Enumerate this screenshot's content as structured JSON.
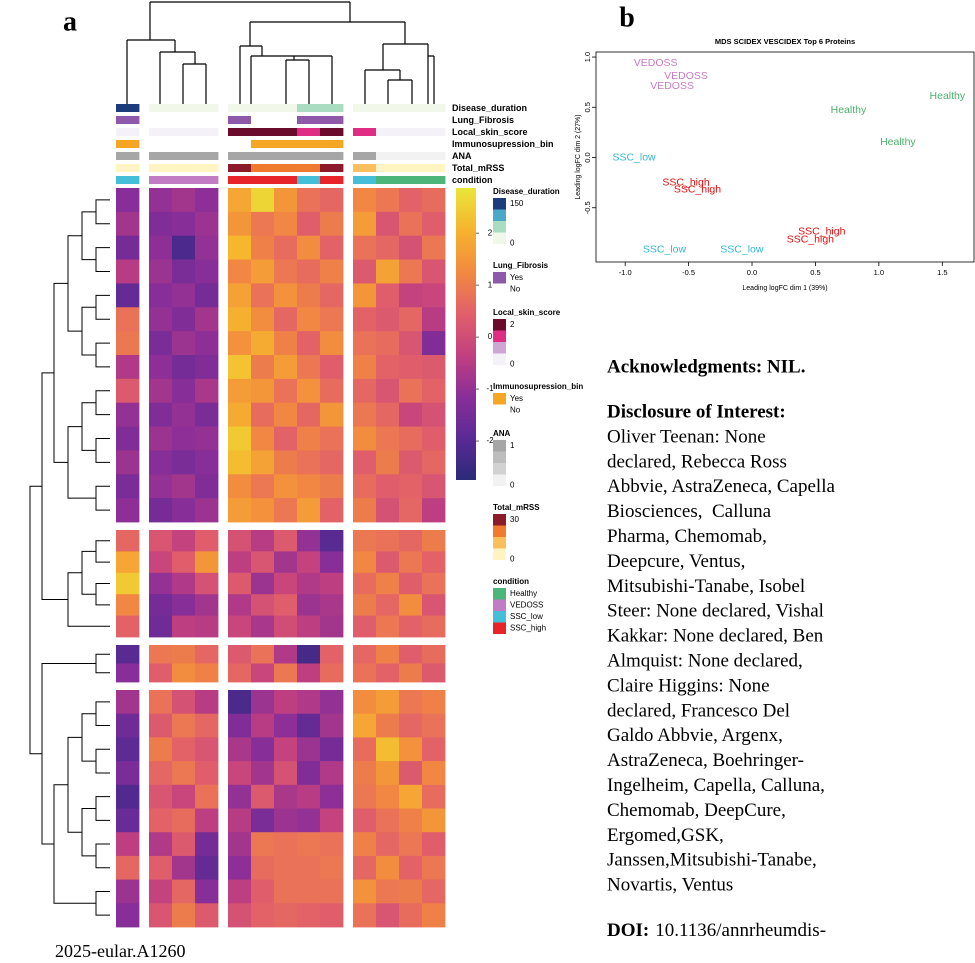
{
  "panel_a": "a",
  "panel_b": "b",
  "chart_data": [
    {
      "type": "heatmap",
      "column_groups": [
        1,
        3,
        5,
        4
      ],
      "row_groups": [
        14,
        5,
        2,
        10
      ],
      "rows": [
        [
          -1.2,
          -1.0,
          -0.8,
          -1.1,
          1.8,
          2.6,
          1.5,
          0.8,
          0.6,
          1.2,
          0.9,
          0.5,
          0.7
        ],
        [
          -0.8,
          -1.3,
          -1.2,
          -0.9,
          1.5,
          0.9,
          1.2,
          0.4,
          1.0,
          1.6,
          0.2,
          0.8,
          0.4
        ],
        [
          -1.5,
          -1.1,
          -2.2,
          -1.0,
          2.1,
          1.1,
          0.7,
          1.3,
          0.5,
          0.8,
          0.6,
          0.1,
          0.9
        ],
        [
          -0.5,
          -0.9,
          -1.4,
          -1.2,
          1.2,
          1.6,
          0.9,
          0.7,
          1.1,
          0.3,
          1.7,
          0.9,
          0.2
        ],
        [
          -1.8,
          -1.2,
          -1.0,
          -1.5,
          1.7,
          0.8,
          1.4,
          1.0,
          0.6,
          1.5,
          0.4,
          -0.3,
          -0.2
        ],
        [
          0.8,
          -1.0,
          -1.3,
          -0.8,
          2.0,
          1.3,
          0.6,
          1.2,
          0.9,
          0.5,
          0.3,
          0.6,
          -0.5
        ],
        [
          0.9,
          -1.4,
          -0.9,
          -1.1,
          1.4,
          1.9,
          1.1,
          0.5,
          1.3,
          0.8,
          0.7,
          0.2,
          -1.3
        ],
        [
          -0.6,
          -1.1,
          -1.5,
          -1.3,
          2.3,
          1.0,
          1.6,
          0.9,
          0.4,
          1.1,
          0.5,
          0.4,
          0.3
        ],
        [
          0.3,
          -0.8,
          -1.2,
          -0.7,
          1.6,
          1.5,
          0.8,
          1.4,
          0.7,
          0.6,
          0.2,
          0.8,
          0.5
        ],
        [
          -1.0,
          -1.3,
          -1.0,
          -1.4,
          1.9,
          0.7,
          1.2,
          0.6,
          1.5,
          0.9,
          0.6,
          -0.2,
          0.1
        ],
        [
          -1.3,
          -0.9,
          -1.1,
          -1.0,
          2.4,
          1.2,
          0.5,
          1.1,
          0.8,
          1.3,
          0.9,
          0.7,
          0.4
        ],
        [
          -0.9,
          -1.2,
          -1.4,
          -1.2,
          2.2,
          1.7,
          1.0,
          0.8,
          0.6,
          0.4,
          1.0,
          0.3,
          0.6
        ],
        [
          -1.4,
          -1.0,
          -0.8,
          -1.3,
          1.3,
          0.9,
          1.4,
          1.2,
          1.0,
          0.7,
          0.4,
          0.5,
          0.2
        ],
        [
          -1.1,
          -1.5,
          -1.2,
          -0.9,
          1.6,
          1.4,
          0.9,
          1.6,
          0.5,
          1.0,
          0.1,
          0.6,
          -0.4
        ],
        [
          0.6,
          0.2,
          -0.3,
          0.4,
          0.1,
          -0.5,
          0.3,
          -1.0,
          -2.0,
          0.9,
          0.8,
          0.6,
          1.0
        ],
        [
          1.8,
          -0.2,
          0.4,
          1.5,
          -0.4,
          0.2,
          -0.8,
          -0.3,
          -1.2,
          1.2,
          0.3,
          0.9,
          0.5
        ],
        [
          2.4,
          -1.0,
          -0.6,
          0.1,
          0.3,
          -0.9,
          -0.2,
          -0.6,
          -0.4,
          0.7,
          1.1,
          0.4,
          0.8
        ],
        [
          1.2,
          -1.5,
          -1.2,
          -0.8,
          -0.6,
          0.1,
          0.4,
          -0.9,
          -0.7,
          1.0,
          0.6,
          1.3,
          0.2
        ],
        [
          0.5,
          -1.6,
          -0.4,
          -0.5,
          -0.2,
          -0.7,
          0.0,
          -0.4,
          -0.8,
          0.4,
          0.9,
          0.5,
          0.7
        ],
        [
          -2.0,
          0.9,
          1.0,
          0.6,
          0.3,
          0.8,
          -0.6,
          -2.3,
          0.5,
          0.6,
          1.1,
          0.4,
          0.7
        ],
        [
          -1.2,
          0.4,
          1.3,
          1.1,
          0.6,
          -0.2,
          0.9,
          -0.4,
          0.7,
          0.8,
          0.5,
          1.0,
          0.3
        ],
        [
          -0.8,
          0.8,
          0.1,
          -0.5,
          -2.2,
          -0.9,
          -0.4,
          -0.6,
          -1.0,
          1.3,
          1.6,
          0.9,
          1.1
        ],
        [
          -1.6,
          0.3,
          0.9,
          0.6,
          -1.3,
          -0.5,
          -1.1,
          -1.8,
          -0.8,
          1.8,
          1.0,
          0.6,
          0.8
        ],
        [
          -1.9,
          1.0,
          0.5,
          0.2,
          -0.7,
          -1.2,
          -0.3,
          -0.9,
          -1.5,
          0.7,
          2.2,
          1.4,
          0.5
        ],
        [
          -1.4,
          0.6,
          0.9,
          0.4,
          -0.2,
          -0.8,
          0.1,
          -1.3,
          -0.6,
          1.0,
          1.5,
          0.3,
          1.2
        ],
        [
          -2.1,
          0.2,
          -0.2,
          0.8,
          -1.0,
          0.3,
          -0.7,
          -0.5,
          -1.1,
          0.9,
          1.2,
          1.8,
          0.7
        ],
        [
          -1.7,
          0.5,
          0.7,
          -0.4,
          -0.5,
          -1.4,
          -0.9,
          -1.0,
          -0.3,
          0.4,
          0.8,
          1.1,
          1.5
        ],
        [
          -0.4,
          -0.6,
          0.3,
          -1.5,
          -0.8,
          0.9,
          0.8,
          0.9,
          0.8,
          1.1,
          0.6,
          0.9,
          0.4
        ],
        [
          0.6,
          0.4,
          -0.8,
          -1.8,
          -1.1,
          0.7,
          0.8,
          0.8,
          0.9,
          0.6,
          1.3,
          0.5,
          0.9
        ],
        [
          -0.9,
          -0.3,
          0.6,
          -1.2,
          -0.4,
          0.4,
          0.8,
          0.8,
          0.8,
          1.4,
          0.9,
          1.0,
          0.6
        ],
        [
          -1.2,
          0.2,
          1.0,
          0.3,
          0.1,
          0.5,
          0.6,
          0.5,
          0.4,
          0.8,
          0.2,
          0.7,
          1.1
        ]
      ],
      "scale": {
        "lim": [
          -2.75,
          2.87
        ],
        "ticks": [
          2,
          1,
          0,
          -1,
          -2
        ],
        "colors": [
          "#2b2a78",
          "#5b2a94",
          "#8a2e98",
          "#c2407f",
          "#e2606a",
          "#f28a3f",
          "#f6b42e",
          "#eae63a"
        ]
      },
      "annotations": [
        {
          "name": "Disease_duration",
          "lim": [
            0,
            150
          ],
          "ticks": [
            150,
            0
          ],
          "colors": [
            "#f1f8e9",
            "#a9dcc0",
            "#4aa9c9",
            "#1d3c7c"
          ],
          "values": [
            150,
            0,
            0,
            0,
            0,
            0,
            0,
            50,
            50,
            0,
            0,
            0,
            0
          ]
        },
        {
          "name": "Lung_Fibrosis",
          "levels": [
            "Yes",
            "No"
          ],
          "colors": [
            "#8e59a8",
            "#ffffff"
          ],
          "values": [
            "Yes",
            "No",
            "No",
            "No",
            "Yes",
            "No",
            "No",
            "Yes",
            "Yes",
            "No",
            "No",
            "No",
            "No"
          ]
        },
        {
          "name": "Local_skin_score",
          "lim": [
            0,
            2
          ],
          "ticks": [
            2,
            0
          ],
          "colors": [
            "#f4f1f8",
            "#cfa6d3",
            "#df2d83",
            "#6b0b2c"
          ],
          "values": [
            0,
            0,
            0,
            0,
            2,
            2,
            2,
            1,
            2,
            1,
            0,
            0,
            0
          ]
        },
        {
          "name": "Immunosupression_bin",
          "levels": [
            "Yes",
            "No"
          ],
          "colors": [
            "#f5a623",
            "#ffffff"
          ],
          "values": [
            "Yes",
            "No",
            "No",
            "No",
            "No",
            "Yes",
            "Yes",
            "Yes",
            "Yes",
            "No",
            "No",
            "No",
            "No"
          ]
        },
        {
          "name": "ANA",
          "lim": [
            0,
            1
          ],
          "ticks": [
            1,
            0
          ],
          "colors": [
            "#f2f2f2",
            "#d2d2d2",
            "#bdbdbd",
            "#a6a6a6"
          ],
          "values": [
            1,
            1,
            1,
            1,
            1,
            1,
            1,
            1,
            1,
            1,
            0,
            0,
            0
          ]
        },
        {
          "name": "Total_mRSS",
          "lim": [
            0,
            30
          ],
          "ticks": [
            30,
            0
          ],
          "colors": [
            "#fff4c2",
            "#f8bf5c",
            "#f07a2e",
            "#8b1a2b"
          ],
          "values": [
            3,
            3,
            3,
            3,
            30,
            20,
            20,
            20,
            25,
            8,
            3,
            3,
            3
          ]
        },
        {
          "name": "condition",
          "levels": [
            "Healthy",
            "VEDOSS",
            "SSC_low",
            "SSC_high"
          ],
          "colors": [
            "#4cb57a",
            "#c17cc4",
            "#45bfd8",
            "#e8242b"
          ],
          "values": [
            "SSC_low",
            "VEDOSS",
            "VEDOSS",
            "VEDOSS",
            "SSC_high",
            "SSC_high",
            "SSC_high",
            "SSC_low",
            "SSC_high",
            "SSC_low",
            "Healthy",
            "Healthy",
            "Healthy"
          ]
        }
      ]
    },
    {
      "type": "scatter",
      "title": "MDS SCIDEX VESCIDEX Top 6 Proteins",
      "x_label": "Leading logFC dim 1 (39%)",
      "y_label": "Leading logFC dim 2 (27%)",
      "xlim": [
        -1.23,
        1.75
      ],
      "ylim": [
        -1.04,
        1.05
      ],
      "xticks": [
        {
          "value": -1,
          "label": "-1.0"
        },
        {
          "value": -0.5,
          "label": "-0.5"
        },
        {
          "value": 0,
          "label": "0.0"
        },
        {
          "value": 0.5,
          "label": "0.5"
        },
        {
          "value": 1,
          "label": "1.0"
        },
        {
          "value": 1.5,
          "label": "1.5"
        }
      ],
      "yticks": [
        {
          "value": 1,
          "label": "1.0"
        },
        {
          "value": 0.5,
          "label": "0.5"
        },
        {
          "value": 0,
          "label": "0.0"
        },
        {
          "value": -0.5,
          "label": "-0.5"
        }
      ],
      "series": [
        {
          "name": "VEDOSS",
          "color": "#c77cc4",
          "x": [
            -0.76,
            -0.52,
            -0.63
          ],
          "values": [
            0.94,
            0.81,
            0.71
          ]
        },
        {
          "name": "Healthy",
          "color": "#4cb06a",
          "x": [
            1.54,
            0.76,
            1.15
          ],
          "values": [
            0.61,
            0.47,
            0.15
          ]
        },
        {
          "name": "SSC_low",
          "color": "#36b8d0",
          "x": [
            -0.93,
            -0.69,
            -0.08
          ],
          "values": [
            0.0,
            -0.92,
            -0.92
          ]
        },
        {
          "name": "SSC_high",
          "color": "#e01010",
          "x": [
            -0.52,
            -0.43,
            0.55,
            0.46
          ],
          "values": [
            -0.25,
            -0.32,
            -0.74,
            -0.82
          ]
        }
      ]
    }
  ],
  "text": {
    "acknowledgments": "Acknowledgments: NIL.",
    "disclosure_heading": "Disclosure of Interest:",
    "disclosure_lines": [
      "Oliver Teenan: None",
      "declared, Rebecca Ross",
      "Abbvie, AstraZeneca, Capella",
      "Biosciences,  Calluna",
      "Pharma, Chemomab,",
      "Deepcure, Ventus,",
      "Mitsubishi-Tanabe, Isobel",
      "Steer: None declared, Vishal",
      "Kakkar: None declared, Ben",
      "Almquist: None declared,",
      "Claire Higgins: None",
      "declared, Francesco Del",
      "Galdo Abbvie, Argenx,",
      "AstraZeneca, Boehringer-",
      "Ingelheim, Capella, Calluna,",
      "Chemomab, DeepCure,",
      "Ergomed,GSK,",
      "Janssen,Mitsubishi-Tanabe,",
      "Novartis, Ventus"
    ],
    "doi_label": "DOI:",
    "doi": "10.1136/annrheumdis-",
    "footer": "2025-eular.A1260"
  }
}
